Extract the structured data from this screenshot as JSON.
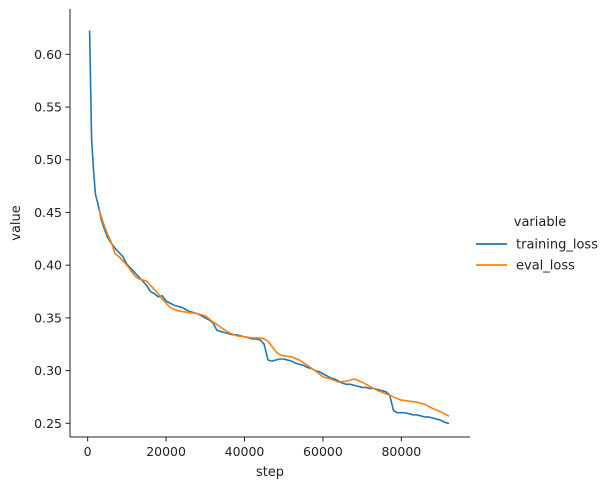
{
  "chart_data": {
    "type": "line",
    "title": "",
    "xlabel": "step",
    "ylabel": "value",
    "xlim": [
      -4500,
      97500
    ],
    "ylim": [
      0.237,
      0.643
    ],
    "xticks": [
      0,
      20000,
      40000,
      60000,
      80000
    ],
    "xtick_labels": [
      "0",
      "20000",
      "40000",
      "60000",
      "80000"
    ],
    "yticks": [
      0.25,
      0.3,
      0.35,
      0.4,
      0.45,
      0.5,
      0.55,
      0.6
    ],
    "ytick_labels": [
      "0.25",
      "0.30",
      "0.35",
      "0.40",
      "0.45",
      "0.50",
      "0.55",
      "0.60"
    ],
    "grid": false,
    "legend": {
      "title": "variable",
      "placement": "right"
    },
    "series": [
      {
        "name": "training_loss",
        "color": "#1f77b4",
        "x": [
          500,
          1000,
          1500,
          2000,
          2500,
          3000,
          3500,
          4000,
          5000,
          6000,
          7000,
          8000,
          9000,
          10000,
          11000,
          12000,
          13000,
          14000,
          15000,
          16000,
          17000,
          18000,
          19000,
          20000,
          21000,
          22000,
          23000,
          24000,
          25000,
          26000,
          27000,
          28000,
          29000,
          30000,
          31000,
          32000,
          33000,
          34000,
          35000,
          36000,
          37000,
          38000,
          39000,
          40000,
          41000,
          42000,
          43000,
          44000,
          45000,
          46000,
          47000,
          48000,
          49000,
          50000,
          51000,
          52000,
          53000,
          54000,
          55000,
          56000,
          57000,
          58000,
          59000,
          60000,
          61000,
          62000,
          63000,
          64000,
          65000,
          66000,
          67000,
          68000,
          69000,
          70000,
          71000,
          72000,
          73000,
          74000,
          75000,
          76000,
          77000,
          78000,
          79000,
          80000,
          81000,
          82000,
          83000,
          84000,
          85000,
          86000,
          87000,
          88000,
          89000,
          90000,
          91000,
          92000
        ],
        "values": [
          0.622,
          0.52,
          0.49,
          0.467,
          0.46,
          0.452,
          0.443,
          0.437,
          0.427,
          0.421,
          0.416,
          0.412,
          0.408,
          0.401,
          0.397,
          0.393,
          0.389,
          0.385,
          0.381,
          0.375,
          0.373,
          0.37,
          0.371,
          0.366,
          0.364,
          0.362,
          0.361,
          0.36,
          0.358,
          0.356,
          0.355,
          0.354,
          0.352,
          0.35,
          0.348,
          0.345,
          0.338,
          0.337,
          0.336,
          0.335,
          0.334,
          0.334,
          0.333,
          0.332,
          0.331,
          0.33,
          0.33,
          0.329,
          0.325,
          0.31,
          0.309,
          0.31,
          0.311,
          0.311,
          0.31,
          0.309,
          0.307,
          0.306,
          0.305,
          0.303,
          0.302,
          0.3,
          0.299,
          0.297,
          0.295,
          0.293,
          0.292,
          0.29,
          0.288,
          0.287,
          0.287,
          0.286,
          0.285,
          0.284,
          0.284,
          0.283,
          0.283,
          0.282,
          0.281,
          0.28,
          0.277,
          0.262,
          0.26,
          0.26,
          0.26,
          0.259,
          0.258,
          0.258,
          0.257,
          0.256,
          0.256,
          0.255,
          0.254,
          0.253,
          0.251,
          0.25
        ]
      },
      {
        "name": "eval_loss",
        "color": "#ff7f0e",
        "x": [
          3000,
          4000,
          5000,
          6000,
          7000,
          8000,
          9000,
          10000,
          11000,
          12000,
          13000,
          14000,
          15000,
          16000,
          17000,
          18000,
          19000,
          20000,
          21000,
          22000,
          24000,
          26000,
          28000,
          30000,
          32000,
          34000,
          36000,
          38000,
          40000,
          42000,
          44000,
          45000,
          46000,
          47000,
          48000,
          49000,
          50000,
          52000,
          54000,
          56000,
          58000,
          60000,
          62000,
          64000,
          66000,
          68000,
          70000,
          72000,
          74000,
          76000,
          78000,
          80000,
          82000,
          84000,
          86000,
          88000,
          90000,
          92000
        ],
        "values": [
          0.452,
          0.44,
          0.43,
          0.422,
          0.411,
          0.408,
          0.404,
          0.4,
          0.395,
          0.39,
          0.387,
          0.386,
          0.385,
          0.381,
          0.377,
          0.373,
          0.368,
          0.364,
          0.36,
          0.358,
          0.356,
          0.355,
          0.354,
          0.352,
          0.346,
          0.341,
          0.336,
          0.333,
          0.332,
          0.331,
          0.331,
          0.33,
          0.328,
          0.323,
          0.318,
          0.315,
          0.314,
          0.313,
          0.31,
          0.305,
          0.3,
          0.294,
          0.292,
          0.289,
          0.29,
          0.292,
          0.289,
          0.285,
          0.281,
          0.278,
          0.275,
          0.272,
          0.271,
          0.27,
          0.268,
          0.264,
          0.261,
          0.257
        ]
      }
    ]
  }
}
